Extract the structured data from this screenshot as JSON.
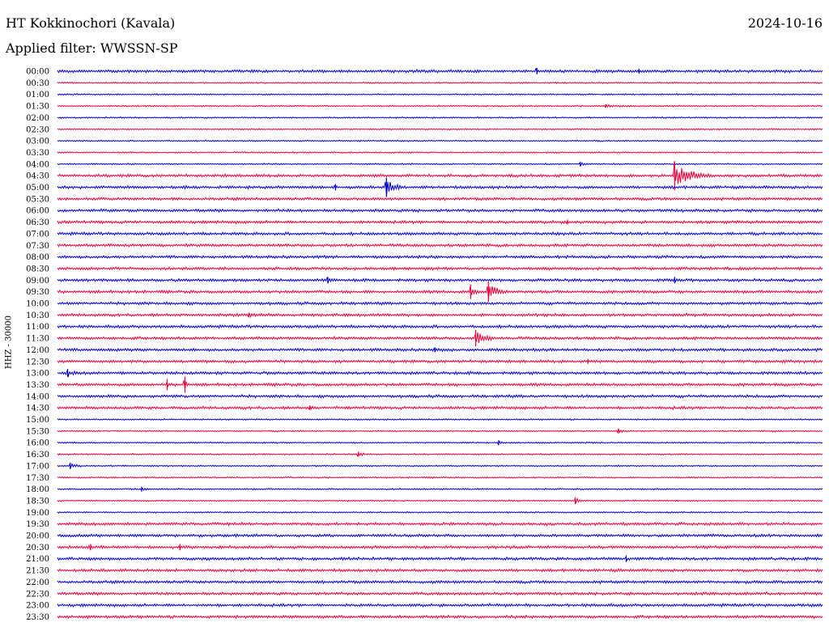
{
  "header": {
    "station": "HT Kokkinochori (Kavala)",
    "date": "2024-10-16",
    "filter": "Applied filter: WWSSN-SP"
  },
  "colors": {
    "even_rows": "#0000cc",
    "odd_rows": "#e8003a",
    "background": "#ffffff"
  },
  "chart_data": {
    "type": "line",
    "subtype": "helicorder",
    "ylabel": "HHZ - 30000",
    "grid": false,
    "row_minutes": 30,
    "x_range_minutes": [
      0,
      30
    ],
    "tick_labels": [
      "00:00",
      "00:30",
      "01:00",
      "01:30",
      "02:00",
      "02:30",
      "03:00",
      "03:30",
      "04:00",
      "04:30",
      "05:00",
      "05:30",
      "06:00",
      "06:30",
      "07:00",
      "07:30",
      "08:00",
      "08:30",
      "09:00",
      "09:30",
      "10:00",
      "10:30",
      "11:00",
      "11:30",
      "12:00",
      "12:30",
      "13:00",
      "13:30",
      "14:00",
      "14:30",
      "15:00",
      "15:30",
      "16:00",
      "16:30",
      "17:00",
      "17:30",
      "18:00",
      "18:30",
      "19:00",
      "19:30",
      "20:00",
      "20:30",
      "21:00",
      "21:30",
      "22:00",
      "22:30",
      "23:00",
      "23:30"
    ],
    "noise_level": [
      2,
      1,
      1,
      1,
      1,
      1,
      1,
      1,
      1,
      2,
      2,
      2,
      2,
      2,
      2,
      2,
      2,
      2,
      2,
      2,
      2,
      2,
      2,
      2,
      2,
      2,
      2,
      2,
      2,
      2,
      1,
      1,
      1,
      1,
      1,
      1,
      1,
      1,
      1,
      2,
      2,
      2,
      2,
      2,
      2,
      2,
      2,
      2
    ],
    "events": [
      {
        "row": 0,
        "minute": 18.8,
        "amplitude": 4,
        "duration": 0.5
      },
      {
        "row": 0,
        "minute": 22.8,
        "amplitude": 3,
        "duration": 0.4
      },
      {
        "row": 3,
        "minute": 21.5,
        "amplitude": 2,
        "duration": 3.5
      },
      {
        "row": 8,
        "minute": 20.5,
        "amplitude": 3,
        "duration": 1.0
      },
      {
        "row": 9,
        "minute": 24.2,
        "amplitude": 18,
        "duration": 2.0
      },
      {
        "row": 10,
        "minute": 12.9,
        "amplitude": 12,
        "duration": 1.2
      },
      {
        "row": 10,
        "minute": 10.9,
        "amplitude": 4,
        "duration": 0.5
      },
      {
        "row": 13,
        "minute": 20.0,
        "amplitude": 3,
        "duration": 0.4
      },
      {
        "row": 18,
        "minute": 10.6,
        "amplitude": 4,
        "duration": 1.2
      },
      {
        "row": 18,
        "minute": 24.2,
        "amplitude": 4,
        "duration": 0.8
      },
      {
        "row": 19,
        "minute": 16.2,
        "amplitude": 9,
        "duration": 0.6
      },
      {
        "row": 19,
        "minute": 16.9,
        "amplitude": 13,
        "duration": 1.2
      },
      {
        "row": 21,
        "minute": 7.5,
        "amplitude": 3,
        "duration": 2.0
      },
      {
        "row": 23,
        "minute": 16.4,
        "amplitude": 10,
        "duration": 1.5
      },
      {
        "row": 24,
        "minute": 14.8,
        "amplitude": 3,
        "duration": 1.0
      },
      {
        "row": 25,
        "minute": 20.8,
        "amplitude": 3,
        "duration": 0.8
      },
      {
        "row": 26,
        "minute": 0.4,
        "amplitude": 5,
        "duration": 1.2
      },
      {
        "row": 27,
        "minute": 4.3,
        "amplitude": 7,
        "duration": 0.2
      },
      {
        "row": 27,
        "minute": 5.0,
        "amplitude": 10,
        "duration": 0.3
      },
      {
        "row": 29,
        "minute": 9.9,
        "amplitude": 3,
        "duration": 1.5
      },
      {
        "row": 31,
        "minute": 22.0,
        "amplitude": 3,
        "duration": 0.8
      },
      {
        "row": 32,
        "minute": 17.3,
        "amplitude": 3,
        "duration": 0.5
      },
      {
        "row": 33,
        "minute": 11.8,
        "amplitude": 3,
        "duration": 1.0
      },
      {
        "row": 34,
        "minute": 0.5,
        "amplitude": 4,
        "duration": 1.2
      },
      {
        "row": 36,
        "minute": 3.3,
        "amplitude": 3,
        "duration": 1.0
      },
      {
        "row": 37,
        "minute": 20.3,
        "amplitude": 4,
        "duration": 1.0
      },
      {
        "row": 41,
        "minute": 1.3,
        "amplitude": 4,
        "duration": 0.3
      },
      {
        "row": 41,
        "minute": 4.8,
        "amplitude": 4,
        "duration": 0.2
      },
      {
        "row": 42,
        "minute": 22.3,
        "amplitude": 4,
        "duration": 0.2
      }
    ]
  }
}
